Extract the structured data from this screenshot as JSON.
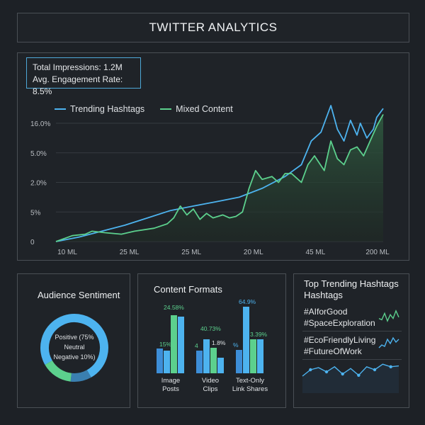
{
  "header": {
    "title": "TWITTER ANALYTICS"
  },
  "summary": {
    "impressions": "Total Impressions: 1.2M",
    "engagement": "Avg. Engagement Rate: 8.5%"
  },
  "colors": {
    "trending": "#4db3ef",
    "mixed": "#5cd08d",
    "grid": "#363b41",
    "panel_border": "#4a4f55"
  },
  "chart_data": {
    "type": "line",
    "x_tick_labels": [
      "10 ML",
      "25 ML",
      "25 ML",
      "20 ML",
      "45 ML",
      "200 ML"
    ],
    "y_tick_labels": [
      "0",
      "5%",
      "2.0%",
      "5.0%",
      "16.0%"
    ],
    "y_tick_values": [
      0,
      1,
      2,
      3,
      4
    ],
    "ylim": [
      0,
      4.6
    ],
    "xlim": [
      0,
      100
    ],
    "series": [
      {
        "name": "Trending Hashtags",
        "color": "#4db3ef",
        "x": [
          0,
          7,
          14,
          21,
          28,
          35,
          42,
          49,
          56,
          63,
          70,
          75,
          78,
          81,
          84,
          86,
          88,
          90,
          92,
          93,
          95,
          97,
          98,
          100
        ],
        "y": [
          0.0,
          0.15,
          0.35,
          0.55,
          0.8,
          1.05,
          1.2,
          1.35,
          1.5,
          1.8,
          2.2,
          2.6,
          3.4,
          3.7,
          4.6,
          3.8,
          3.4,
          4.1,
          3.6,
          4.0,
          3.5,
          3.8,
          4.2,
          4.5
        ]
      },
      {
        "name": "Mixed Content",
        "color": "#5cd08d",
        "x": [
          0,
          5,
          9,
          11,
          15,
          20,
          24,
          30,
          34,
          36,
          38,
          40,
          42,
          44,
          46,
          48,
          51,
          53,
          55,
          57,
          59,
          61,
          63,
          66,
          68,
          70,
          72,
          75,
          77,
          79,
          82,
          84,
          86,
          88,
          90,
          92,
          94,
          96,
          98,
          100
        ],
        "y": [
          0.0,
          0.2,
          0.25,
          0.35,
          0.3,
          0.25,
          0.35,
          0.45,
          0.6,
          0.8,
          1.2,
          0.9,
          1.1,
          0.75,
          0.95,
          0.8,
          0.9,
          0.8,
          0.85,
          1.0,
          1.8,
          2.4,
          2.1,
          2.2,
          2.0,
          2.3,
          2.3,
          2.0,
          2.6,
          2.9,
          2.4,
          3.4,
          2.8,
          2.6,
          3.1,
          3.2,
          2.9,
          3.4,
          3.9,
          4.3
        ]
      }
    ]
  },
  "sentiment": {
    "title": "Audience Sentiment",
    "labels": [
      "Positive (75%",
      "Neutral",
      "Negative 10%)"
    ],
    "values": [
      75,
      15,
      10
    ],
    "colors": [
      "#4db3ef",
      "#5cd08d",
      "#3a7fb0"
    ]
  },
  "formats": {
    "title": "Content Formats",
    "groups": [
      {
        "label_line1": "Image",
        "label_line2": "Posts",
        "values": [
          0.35,
          0.32,
          0.82,
          0.8
        ],
        "top_label_a": "15%",
        "top_label_b": "24.58%"
      },
      {
        "label_line1": "Video",
        "label_line2": "Clips",
        "values": [
          0.32,
          0.48,
          0.36,
          0.22
        ],
        "top_label_a": "4",
        "top_label_b": "40.73%",
        "top_label_c": "1.8%"
      },
      {
        "label_line1": "Text-Only",
        "label_line2": "Link Shares",
        "values": [
          0.33,
          0.94,
          0.48,
          0.48
        ],
        "top_label_a": "%",
        "top_label_b": "64.9%",
        "top_label_c": "3.39%"
      }
    ],
    "colors": [
      "#3d8ed8",
      "#4db3ef",
      "#5cd08d"
    ]
  },
  "hashtags": {
    "title_line1": "Top Trending Hashtags",
    "title_line2": "Hashtags",
    "tags": [
      "#AIforGood",
      "#SpaceExploration",
      "#EcoFriendlyLiving",
      "#FutureOfWork"
    ],
    "spark_points": [
      0.4,
      0.55,
      0.6,
      0.5,
      0.62,
      0.45,
      0.58,
      0.42,
      0.62,
      0.55,
      0.68,
      0.62,
      0.64
    ],
    "spark1": [
      0.3,
      0.2,
      0.7,
      0.1,
      0.6,
      0.3,
      0.9,
      0.4
    ],
    "spark2": [
      0.2,
      0.4,
      0.3,
      0.8,
      0.5,
      0.9,
      0.6,
      0.8
    ]
  }
}
